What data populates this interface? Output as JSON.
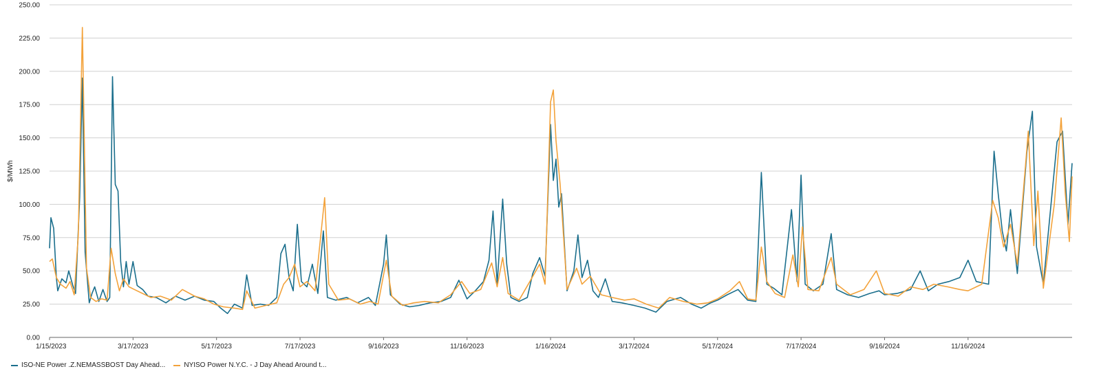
{
  "chart_data": {
    "type": "line",
    "ylabel": "$/MWh",
    "xlabel": "",
    "ylim": [
      0,
      250
    ],
    "y_ticks": [
      "0.00",
      "25.00",
      "50.00",
      "75.00",
      "100.00",
      "125.00",
      "150.00",
      "175.00",
      "200.00",
      "225.00",
      "250.00"
    ],
    "x_start": "2023-01-15",
    "x_end": "2025-01-31",
    "x_tick_labels": [
      "1/15/2023",
      "3/17/2023",
      "5/17/2023",
      "7/17/2023",
      "9/16/2023",
      "11/16/2023",
      "1/16/2024",
      "3/17/2024",
      "5/17/2024",
      "7/17/2024",
      "9/16/2024",
      "11/16/2024"
    ],
    "x_tick_dates": [
      "2023-01-15",
      "2023-03-17",
      "2023-05-17",
      "2023-07-17",
      "2023-09-16",
      "2023-11-16",
      "2024-01-16",
      "2024-03-17",
      "2024-05-17",
      "2024-07-17",
      "2024-09-16",
      "2024-11-16"
    ],
    "grid": "horizontal",
    "legend_position": "bottom-left",
    "series": [
      {
        "name": "ISO-NE Power .Z.NEMASSBOST Day Ahead...",
        "color": "#1a6e8c",
        "points": [
          [
            "2023-01-15",
            67
          ],
          [
            "2023-01-16",
            90
          ],
          [
            "2023-01-18",
            82
          ],
          [
            "2023-01-20",
            45
          ],
          [
            "2023-01-21",
            35
          ],
          [
            "2023-01-24",
            44
          ],
          [
            "2023-01-27",
            41
          ],
          [
            "2023-01-29",
            50
          ],
          [
            "2023-02-01",
            39
          ],
          [
            "2023-02-03",
            33
          ],
          [
            "2023-02-06",
            105
          ],
          [
            "2023-02-08",
            195
          ],
          [
            "2023-02-10",
            64
          ],
          [
            "2023-02-13",
            26
          ],
          [
            "2023-02-15",
            33
          ],
          [
            "2023-02-17",
            38
          ],
          [
            "2023-02-20",
            27
          ],
          [
            "2023-02-23",
            36
          ],
          [
            "2023-02-26",
            27
          ],
          [
            "2023-02-28",
            30
          ],
          [
            "2023-03-02",
            196
          ],
          [
            "2023-03-04",
            115
          ],
          [
            "2023-03-06",
            110
          ],
          [
            "2023-03-08",
            57
          ],
          [
            "2023-03-10",
            38
          ],
          [
            "2023-03-12",
            57
          ],
          [
            "2023-03-14",
            40
          ],
          [
            "2023-03-17",
            57
          ],
          [
            "2023-03-20",
            39
          ],
          [
            "2023-03-24",
            36
          ],
          [
            "2023-03-28",
            31
          ],
          [
            "2023-04-03",
            30
          ],
          [
            "2023-04-10",
            26
          ],
          [
            "2023-04-17",
            31
          ],
          [
            "2023-04-24",
            28
          ],
          [
            "2023-05-01",
            31
          ],
          [
            "2023-05-08",
            28
          ],
          [
            "2023-05-15",
            27
          ],
          [
            "2023-05-20",
            22
          ],
          [
            "2023-05-25",
            18
          ],
          [
            "2023-05-30",
            25
          ],
          [
            "2023-06-05",
            22
          ],
          [
            "2023-06-08",
            47
          ],
          [
            "2023-06-12",
            24
          ],
          [
            "2023-06-18",
            25
          ],
          [
            "2023-06-24",
            24
          ],
          [
            "2023-06-30",
            30
          ],
          [
            "2023-07-03",
            63
          ],
          [
            "2023-07-06",
            70
          ],
          [
            "2023-07-09",
            45
          ],
          [
            "2023-07-12",
            35
          ],
          [
            "2023-07-15",
            85
          ],
          [
            "2023-07-18",
            42
          ],
          [
            "2023-07-22",
            38
          ],
          [
            "2023-07-26",
            55
          ],
          [
            "2023-07-30",
            33
          ],
          [
            "2023-08-03",
            80
          ],
          [
            "2023-08-06",
            30
          ],
          [
            "2023-08-12",
            28
          ],
          [
            "2023-08-20",
            30
          ],
          [
            "2023-08-28",
            26
          ],
          [
            "2023-09-05",
            30
          ],
          [
            "2023-09-10",
            24
          ],
          [
            "2023-09-16",
            55
          ],
          [
            "2023-09-18",
            77
          ],
          [
            "2023-09-21",
            32
          ],
          [
            "2023-09-28",
            25
          ],
          [
            "2023-10-05",
            23
          ],
          [
            "2023-10-12",
            24
          ],
          [
            "2023-10-20",
            26
          ],
          [
            "2023-10-28",
            27
          ],
          [
            "2023-11-04",
            30
          ],
          [
            "2023-11-10",
            43
          ],
          [
            "2023-11-16",
            29
          ],
          [
            "2023-11-22",
            35
          ],
          [
            "2023-11-28",
            42
          ],
          [
            "2023-12-02",
            58
          ],
          [
            "2023-12-05",
            95
          ],
          [
            "2023-12-08",
            40
          ],
          [
            "2023-12-12",
            104
          ],
          [
            "2023-12-15",
            55
          ],
          [
            "2023-12-18",
            30
          ],
          [
            "2023-12-24",
            27
          ],
          [
            "2023-12-30",
            30
          ],
          [
            "2024-01-03",
            48
          ],
          [
            "2024-01-08",
            60
          ],
          [
            "2024-01-12",
            46
          ],
          [
            "2024-01-16",
            160
          ],
          [
            "2024-01-18",
            118
          ],
          [
            "2024-01-20",
            134
          ],
          [
            "2024-01-22",
            98
          ],
          [
            "2024-01-24",
            108
          ],
          [
            "2024-01-28",
            35
          ],
          [
            "2024-02-02",
            50
          ],
          [
            "2024-02-05",
            77
          ],
          [
            "2024-02-08",
            45
          ],
          [
            "2024-02-12",
            58
          ],
          [
            "2024-02-16",
            35
          ],
          [
            "2024-02-20",
            30
          ],
          [
            "2024-02-25",
            44
          ],
          [
            "2024-03-01",
            27
          ],
          [
            "2024-03-08",
            26
          ],
          [
            "2024-03-17",
            24
          ],
          [
            "2024-03-25",
            22
          ],
          [
            "2024-04-02",
            19
          ],
          [
            "2024-04-10",
            27
          ],
          [
            "2024-04-20",
            30
          ],
          [
            "2024-04-28",
            25
          ],
          [
            "2024-05-05",
            22
          ],
          [
            "2024-05-12",
            26
          ],
          [
            "2024-05-17",
            28
          ],
          [
            "2024-05-24",
            32
          ],
          [
            "2024-06-01",
            36
          ],
          [
            "2024-06-08",
            28
          ],
          [
            "2024-06-14",
            27
          ],
          [
            "2024-06-18",
            124
          ],
          [
            "2024-06-22",
            40
          ],
          [
            "2024-06-27",
            37
          ],
          [
            "2024-07-03",
            32
          ],
          [
            "2024-07-10",
            96
          ],
          [
            "2024-07-14",
            42
          ],
          [
            "2024-07-17",
            122
          ],
          [
            "2024-07-20",
            40
          ],
          [
            "2024-07-26",
            35
          ],
          [
            "2024-08-02",
            40
          ],
          [
            "2024-08-08",
            78
          ],
          [
            "2024-08-12",
            36
          ],
          [
            "2024-08-20",
            32
          ],
          [
            "2024-08-28",
            30
          ],
          [
            "2024-09-05",
            33
          ],
          [
            "2024-09-12",
            35
          ],
          [
            "2024-09-16",
            32
          ],
          [
            "2024-09-25",
            33
          ],
          [
            "2024-10-05",
            36
          ],
          [
            "2024-10-12",
            50
          ],
          [
            "2024-10-18",
            35
          ],
          [
            "2024-10-25",
            40
          ],
          [
            "2024-11-02",
            42
          ],
          [
            "2024-11-10",
            45
          ],
          [
            "2024-11-16",
            58
          ],
          [
            "2024-11-22",
            42
          ],
          [
            "2024-12-01",
            40
          ],
          [
            "2024-12-05",
            140
          ],
          [
            "2024-12-08",
            108
          ],
          [
            "2024-12-11",
            80
          ],
          [
            "2024-12-14",
            65
          ],
          [
            "2024-12-17",
            96
          ],
          [
            "2024-12-22",
            48
          ],
          [
            "2024-12-29",
            140
          ],
          [
            "2025-01-02",
            170
          ],
          [
            "2025-01-05",
            68
          ],
          [
            "2025-01-10",
            40
          ],
          [
            "2025-01-20",
            147
          ],
          [
            "2025-01-24",
            155
          ],
          [
            "2025-01-28",
            85
          ],
          [
            "2025-01-31",
            131
          ]
        ]
      },
      {
        "name": "NYISO Power N.Y.C. - J Day Ahead Around t...",
        "color": "#f3a23a",
        "points": [
          [
            "2023-01-15",
            57
          ],
          [
            "2023-01-17",
            59
          ],
          [
            "2023-01-20",
            45
          ],
          [
            "2023-01-23",
            40
          ],
          [
            "2023-01-27",
            37
          ],
          [
            "2023-01-30",
            42
          ],
          [
            "2023-02-02",
            32
          ],
          [
            "2023-02-05",
            77
          ],
          [
            "2023-02-08",
            233
          ],
          [
            "2023-02-11",
            52
          ],
          [
            "2023-02-14",
            30
          ],
          [
            "2023-02-18",
            27
          ],
          [
            "2023-02-22",
            29
          ],
          [
            "2023-02-26",
            28
          ],
          [
            "2023-03-01",
            67
          ],
          [
            "2023-03-04",
            48
          ],
          [
            "2023-03-07",
            35
          ],
          [
            "2023-03-10",
            44
          ],
          [
            "2023-03-14",
            38
          ],
          [
            "2023-03-18",
            36
          ],
          [
            "2023-03-24",
            33
          ],
          [
            "2023-03-30",
            30
          ],
          [
            "2023-04-06",
            31
          ],
          [
            "2023-04-14",
            28
          ],
          [
            "2023-04-22",
            36
          ],
          [
            "2023-05-01",
            31
          ],
          [
            "2023-05-08",
            29
          ],
          [
            "2023-05-15",
            25
          ],
          [
            "2023-05-22",
            23
          ],
          [
            "2023-05-30",
            22
          ],
          [
            "2023-06-05",
            21
          ],
          [
            "2023-06-08",
            35
          ],
          [
            "2023-06-14",
            22
          ],
          [
            "2023-06-22",
            24
          ],
          [
            "2023-06-30",
            26
          ],
          [
            "2023-07-05",
            40
          ],
          [
            "2023-07-09",
            45
          ],
          [
            "2023-07-13",
            55
          ],
          [
            "2023-07-17",
            38
          ],
          [
            "2023-07-22",
            42
          ],
          [
            "2023-07-28",
            35
          ],
          [
            "2023-08-04",
            105
          ],
          [
            "2023-08-07",
            40
          ],
          [
            "2023-08-14",
            28
          ],
          [
            "2023-08-22",
            29
          ],
          [
            "2023-08-30",
            25
          ],
          [
            "2023-09-06",
            27
          ],
          [
            "2023-09-12",
            25
          ],
          [
            "2023-09-18",
            58
          ],
          [
            "2023-09-22",
            31
          ],
          [
            "2023-09-30",
            24
          ],
          [
            "2023-10-08",
            26
          ],
          [
            "2023-10-16",
            27
          ],
          [
            "2023-10-26",
            26
          ],
          [
            "2023-11-04",
            32
          ],
          [
            "2023-11-12",
            42
          ],
          [
            "2023-11-18",
            33
          ],
          [
            "2023-11-26",
            36
          ],
          [
            "2023-12-04",
            56
          ],
          [
            "2023-12-08",
            38
          ],
          [
            "2023-12-12",
            60
          ],
          [
            "2023-12-16",
            33
          ],
          [
            "2023-12-24",
            28
          ],
          [
            "2024-01-02",
            44
          ],
          [
            "2024-01-08",
            55
          ],
          [
            "2024-01-12",
            40
          ],
          [
            "2024-01-16",
            177
          ],
          [
            "2024-01-18",
            186
          ],
          [
            "2024-01-20",
            148
          ],
          [
            "2024-01-23",
            115
          ],
          [
            "2024-01-28",
            36
          ],
          [
            "2024-02-04",
            52
          ],
          [
            "2024-02-08",
            40
          ],
          [
            "2024-02-14",
            46
          ],
          [
            "2024-02-22",
            32
          ],
          [
            "2024-03-01",
            30
          ],
          [
            "2024-03-10",
            28
          ],
          [
            "2024-03-17",
            29
          ],
          [
            "2024-03-26",
            25
          ],
          [
            "2024-04-04",
            22
          ],
          [
            "2024-04-12",
            30
          ],
          [
            "2024-04-22",
            27
          ],
          [
            "2024-05-02",
            25
          ],
          [
            "2024-05-10",
            26
          ],
          [
            "2024-05-17",
            29
          ],
          [
            "2024-05-26",
            35
          ],
          [
            "2024-06-02",
            42
          ],
          [
            "2024-06-08",
            29
          ],
          [
            "2024-06-14",
            28
          ],
          [
            "2024-06-18",
            68
          ],
          [
            "2024-06-22",
            42
          ],
          [
            "2024-06-28",
            33
          ],
          [
            "2024-07-05",
            30
          ],
          [
            "2024-07-11",
            62
          ],
          [
            "2024-07-15",
            38
          ],
          [
            "2024-07-18",
            83
          ],
          [
            "2024-07-22",
            36
          ],
          [
            "2024-07-30",
            35
          ],
          [
            "2024-08-08",
            60
          ],
          [
            "2024-08-12",
            40
          ],
          [
            "2024-08-22",
            32
          ],
          [
            "2024-09-01",
            36
          ],
          [
            "2024-09-10",
            50
          ],
          [
            "2024-09-16",
            33
          ],
          [
            "2024-09-26",
            31
          ],
          [
            "2024-10-05",
            38
          ],
          [
            "2024-10-14",
            36
          ],
          [
            "2024-10-22",
            40
          ],
          [
            "2024-11-01",
            38
          ],
          [
            "2024-11-10",
            36
          ],
          [
            "2024-11-16",
            35
          ],
          [
            "2024-11-26",
            40
          ],
          [
            "2024-12-04",
            103
          ],
          [
            "2024-12-08",
            90
          ],
          [
            "2024-12-12",
            68
          ],
          [
            "2024-12-17",
            85
          ],
          [
            "2024-12-22",
            55
          ],
          [
            "2024-12-28",
            130
          ],
          [
            "2024-12-30",
            155
          ],
          [
            "2025-01-03",
            69
          ],
          [
            "2025-01-06",
            110
          ],
          [
            "2025-01-10",
            37
          ],
          [
            "2025-01-18",
            100
          ],
          [
            "2025-01-23",
            165
          ],
          [
            "2025-01-26",
            108
          ],
          [
            "2025-01-29",
            72
          ],
          [
            "2025-01-31",
            121
          ]
        ]
      }
    ]
  }
}
